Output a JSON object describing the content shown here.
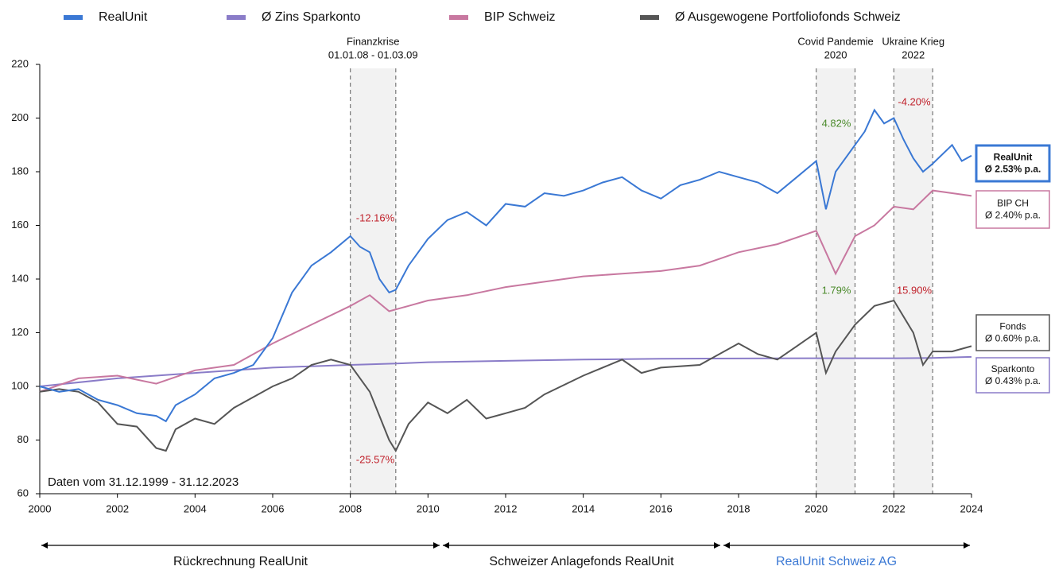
{
  "chart_data": {
    "type": "line",
    "xlim": [
      2000,
      2024
    ],
    "xticks": [
      2000,
      2002,
      2004,
      2006,
      2008,
      2010,
      2012,
      2014,
      2016,
      2018,
      2020,
      2022,
      2024
    ],
    "ylim": [
      60,
      220
    ],
    "yticks": [
      60,
      80,
      100,
      120,
      140,
      160,
      180,
      200,
      220
    ],
    "series": [
      {
        "name": "RealUnit",
        "color": "#3a78d4",
        "x": [
          2000,
          2000.5,
          2001,
          2001.5,
          2002,
          2002.5,
          2003,
          2003.25,
          2003.5,
          2004,
          2004.5,
          2005,
          2005.5,
          2006,
          2006.5,
          2007,
          2007.5,
          2008,
          2008.25,
          2008.5,
          2008.75,
          2009,
          2009.17,
          2009.5,
          2010,
          2010.5,
          2011,
          2011.5,
          2012,
          2012.5,
          2013,
          2013.5,
          2014,
          2014.5,
          2015,
          2015.5,
          2016,
          2016.5,
          2017,
          2017.5,
          2018,
          2018.5,
          2019,
          2019.5,
          2020,
          2020.25,
          2020.5,
          2021,
          2021.25,
          2021.5,
          2021.75,
          2022,
          2022.25,
          2022.5,
          2022.75,
          2023,
          2023.5,
          2023.75,
          2024
        ],
        "values": [
          100,
          98,
          99,
          95,
          93,
          90,
          89,
          87,
          93,
          97,
          103,
          105,
          108,
          118,
          135,
          145,
          150,
          156,
          152,
          150,
          140,
          135,
          136,
          145,
          155,
          162,
          165,
          160,
          168,
          167,
          172,
          171,
          173,
          176,
          178,
          173,
          170,
          175,
          177,
          180,
          178,
          176,
          172,
          178,
          184,
          166,
          180,
          190,
          195,
          203,
          198,
          200,
          192,
          185,
          180,
          183,
          190,
          184,
          186
        ]
      },
      {
        "name": "Ø Zins Sparkonto",
        "color": "#8a7cc8",
        "x": [
          2000,
          2002,
          2004,
          2006,
          2008,
          2009.17,
          2010,
          2012,
          2014,
          2016,
          2018,
          2020,
          2022,
          2023,
          2024
        ],
        "values": [
          100,
          103,
          105,
          107,
          108,
          108.5,
          109,
          109.5,
          110,
          110.3,
          110.4,
          110.5,
          110.5,
          110.6,
          111
        ]
      },
      {
        "name": "BIP Schweiz",
        "color": "#c878a0",
        "x": [
          2000,
          2001,
          2002,
          2003,
          2004,
          2005,
          2006,
          2007,
          2008,
          2008.5,
          2009,
          2009.5,
          2010,
          2011,
          2012,
          2013,
          2014,
          2015,
          2016,
          2017,
          2018,
          2019,
          2020,
          2020.5,
          2021,
          2021.5,
          2022,
          2022.5,
          2023,
          2024
        ],
        "values": [
          98,
          103,
          104,
          101,
          106,
          108,
          116,
          123,
          130,
          134,
          128,
          130,
          132,
          134,
          137,
          139,
          141,
          142,
          143,
          145,
          150,
          153,
          158,
          142,
          156,
          160,
          167,
          166,
          173,
          171
        ]
      },
      {
        "name": "Ø Ausgewogene Portfoliofonds Schweiz",
        "color": "#555555",
        "x": [
          2000,
          2000.5,
          2001,
          2001.5,
          2002,
          2002.5,
          2003,
          2003.25,
          2003.5,
          2004,
          2004.5,
          2005,
          2006,
          2006.5,
          2007,
          2007.5,
          2008,
          2008.5,
          2009,
          2009.17,
          2009.5,
          2010,
          2010.5,
          2011,
          2011.5,
          2012,
          2012.5,
          2013,
          2014,
          2015,
          2015.5,
          2016,
          2017,
          2018,
          2018.5,
          2019,
          2019.5,
          2020,
          2020.25,
          2020.5,
          2021,
          2021.5,
          2022,
          2022.5,
          2022.75,
          2023,
          2023.5,
          2024
        ],
        "values": [
          98,
          99,
          98,
          94,
          86,
          85,
          77,
          76,
          84,
          88,
          86,
          92,
          100,
          103,
          108,
          110,
          108,
          98,
          80,
          76,
          86,
          94,
          90,
          95,
          88,
          90,
          92,
          97,
          104,
          110,
          105,
          107,
          108,
          116,
          112,
          110,
          115,
          120,
          105,
          113,
          123,
          130,
          132,
          120,
          108,
          113,
          113,
          115
        ]
      }
    ],
    "periods": [
      {
        "start": 2008,
        "end": 2009.17,
        "label": [
          "Finanzkrise",
          "01.01.08 - 01.03.09"
        ]
      },
      {
        "start": 2020,
        "end": 2021,
        "label": [
          "Covid Pandemie",
          "2020"
        ]
      },
      {
        "start": 2022,
        "end": 2023,
        "label": [
          "Ukraine Krieg",
          "2022"
        ]
      }
    ],
    "annotations": [
      {
        "text": "-12.16%",
        "color": "#c0202a"
      },
      {
        "text": "-25.57%",
        "color": "#c0202a"
      },
      {
        "text": "4.82%",
        "color": "#4a8a2a"
      },
      {
        "text": "1.79%",
        "color": "#4a8a2a"
      },
      {
        "text": "-4.20%",
        "color": "#c0202a"
      },
      {
        "text": "15.90%",
        "color": "#c0202a"
      }
    ],
    "end_labels": [
      {
        "name": "RealUnit",
        "text": "Ø 2.53% p.a.",
        "series": 0
      },
      {
        "name": "BIP CH",
        "text": "Ø 2.40% p.a.",
        "series": 2
      },
      {
        "name": "Fonds",
        "text": "Ø 0.60% p.a.",
        "series": 3
      },
      {
        "name": "Sparkonto",
        "text": "Ø 0.43% p.a.",
        "series": 1
      }
    ],
    "note": "Daten vom 31.12.1999 - 31.12.2023",
    "timeline": [
      "Rückrechnung RealUnit",
      "Schweizer Anlagefonds RealUnit",
      "RealUnit Schweiz AG"
    ]
  }
}
